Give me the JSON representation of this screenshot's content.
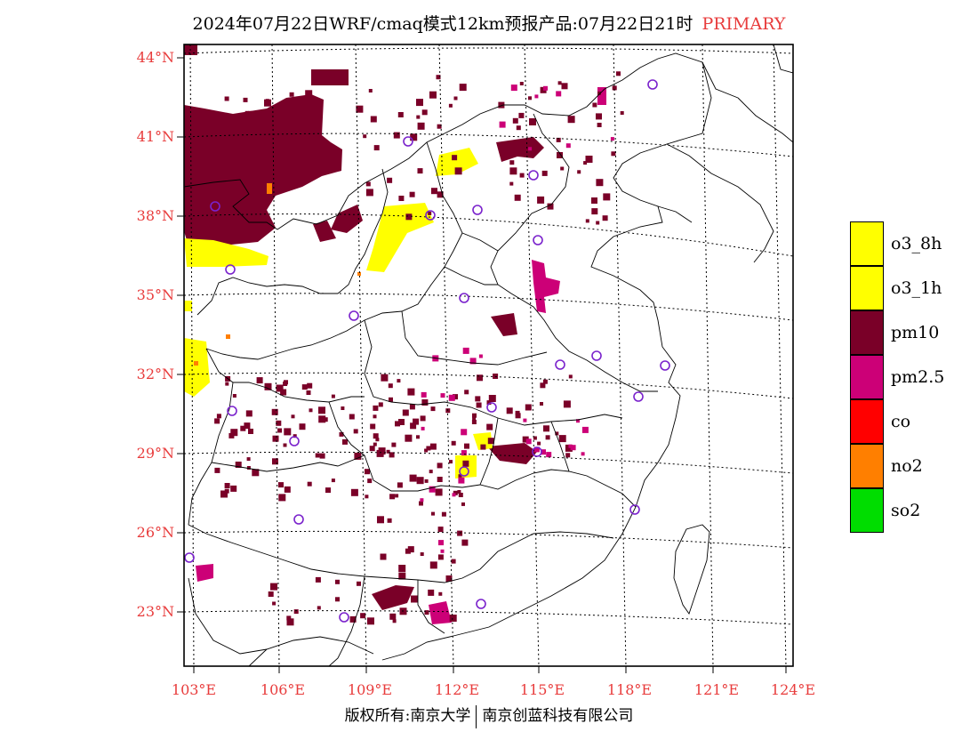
{
  "title": {
    "main": "2024年07月22日WRF/cmaq模式12km预报产品:07月22日21时",
    "tag": "PRIMARY",
    "tag_color": "#e83c3c"
  },
  "lat_ticks": [
    "44°N",
    "41°N",
    "38°N",
    "35°N",
    "32°N",
    "29°N",
    "26°N",
    "23°N"
  ],
  "lon_ticks": [
    "103°E",
    "106°E",
    "109°E",
    "112°E",
    "115°E",
    "118°E",
    "121°E",
    "124°E"
  ],
  "legend": [
    {
      "label": "o3_8h",
      "color": "#ffff00"
    },
    {
      "label": "o3_1h",
      "color": "#ffff00"
    },
    {
      "label": "pm10",
      "color": "#7a0028"
    },
    {
      "label": "pm2.5",
      "color": "#cc0077"
    },
    {
      "label": "co",
      "color": "#ff0000"
    },
    {
      "label": "no2",
      "color": "#ff7f00"
    },
    {
      "label": "so2",
      "color": "#00dd00"
    }
  ],
  "footer": {
    "left": "版权所有:南京大学",
    "right": "南京创蓝科技有限公司"
  },
  "pollutant_colors": {
    "o3": "#ffff00",
    "pm10": "#7a0028",
    "pm25": "#cc0077",
    "no2": "#ff7f00"
  },
  "station_marker_color": "#7a22cc"
}
